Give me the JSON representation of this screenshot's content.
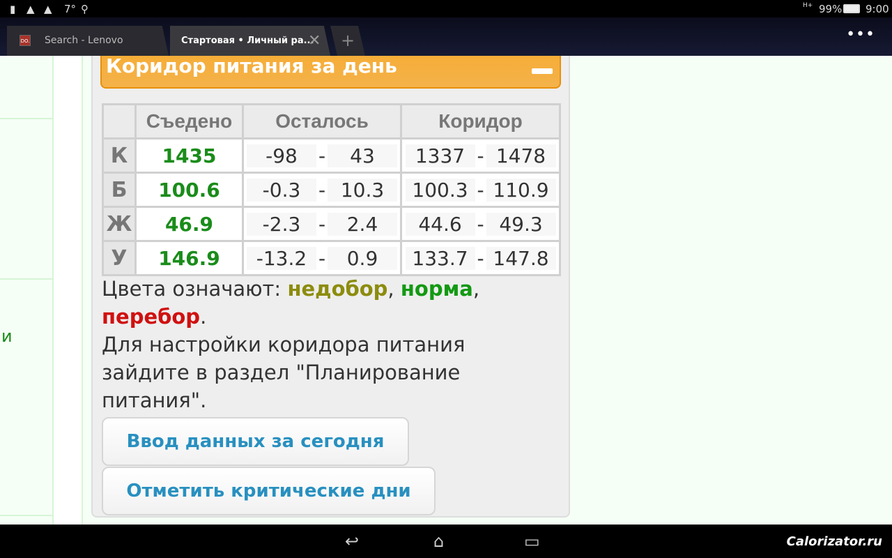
{
  "status_bar": {
    "temperature": "7°",
    "signal": "H+",
    "battery": "99%",
    "time": "9:00"
  },
  "tabs": [
    {
      "label": "Search - Lenovo",
      "favicon": "DO."
    },
    {
      "label": "Стартовая • Личный ра...",
      "active": true
    }
  ],
  "left_fragment": "и",
  "widget": {
    "title": "Коридор питания за день",
    "columns": [
      "",
      "Съедено",
      "Осталось",
      "Коридор"
    ],
    "rows": [
      {
        "label": "К",
        "eaten": "1435",
        "left_min": "-98",
        "left_max": "43",
        "corr_min": "1337",
        "corr_max": "1478"
      },
      {
        "label": "Б",
        "eaten": "100.6",
        "left_min": "-0.3",
        "left_max": "10.3",
        "corr_min": "100.3",
        "corr_max": "110.9"
      },
      {
        "label": "Ж",
        "eaten": "46.9",
        "left_min": "-2.3",
        "left_max": "2.4",
        "corr_min": "44.6",
        "corr_max": "49.3"
      },
      {
        "label": "У",
        "eaten": "146.9",
        "left_min": "-13.2",
        "left_max": "0.9",
        "corr_min": "133.7",
        "corr_max": "147.8"
      }
    ],
    "dash": "-",
    "legend_prefix": "Цвета означают: ",
    "legend_under": "недобор",
    "legend_norm": "норма",
    "legend_over": "перебор",
    "sep": ", ",
    "end": ".",
    "note": "Для настройки коридора питания зайдите в раздел \"Планирование питания\".",
    "btn_enter": "Ввод данных за сегодня",
    "btn_critical": "Отметить критические дни"
  },
  "colors": {
    "accent": "#f5ad3a",
    "normal": "#139913",
    "under": "#8c8c0e",
    "over": "#d01010",
    "button_text": "#2890c0"
  },
  "watermark": "Calorizator.ru"
}
